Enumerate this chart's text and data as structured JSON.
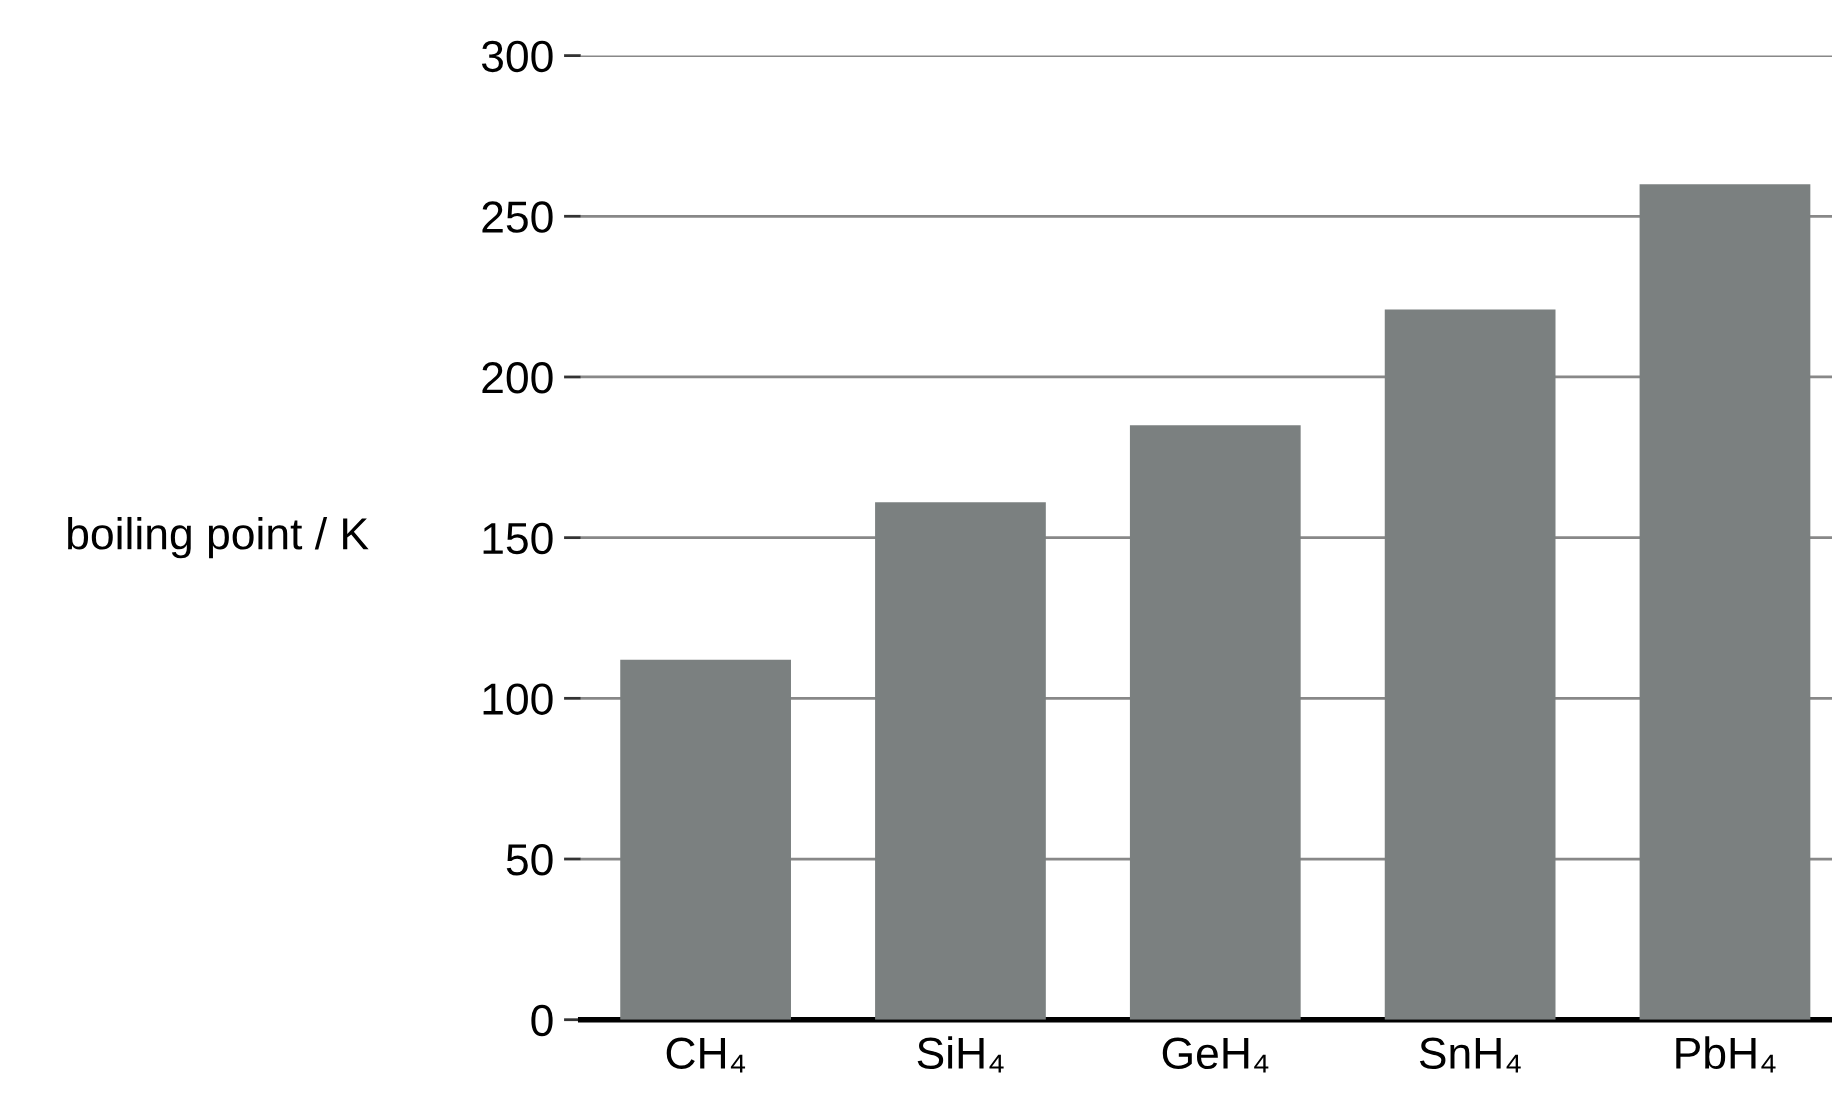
{
  "chart_data": {
    "type": "bar",
    "ylabel": "boiling point / K",
    "categories": [
      "CH₄",
      "SiH₄",
      "GeH₄",
      "SnH₄",
      "PbH₄"
    ],
    "values": [
      112,
      161,
      185,
      221,
      260
    ],
    "color": "#7b8080",
    "ylim": [
      0,
      300
    ],
    "yticks": [
      0,
      50,
      100,
      150,
      200,
      250,
      300
    ],
    "grid": "y"
  }
}
